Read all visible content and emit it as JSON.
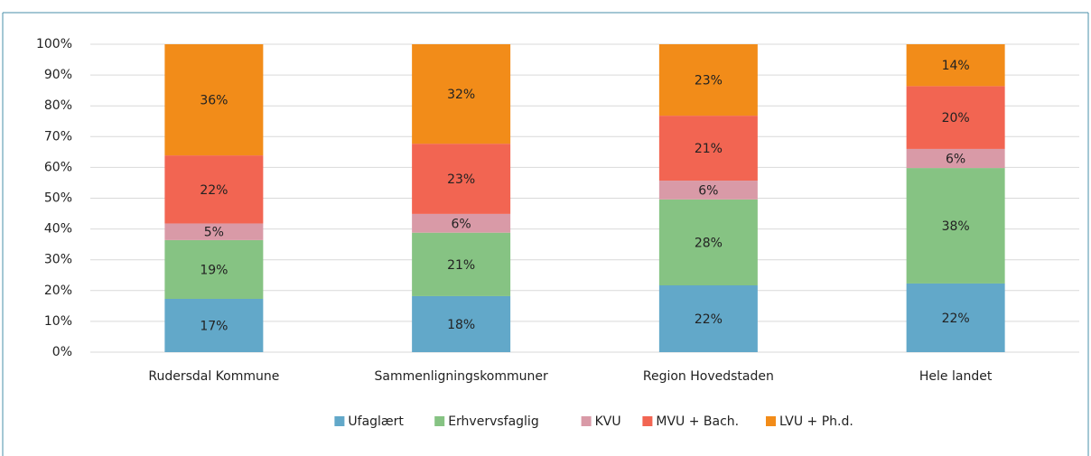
{
  "chart_data": {
    "type": "stacked_bar",
    "categories": [
      "Rudersdal Kommune",
      "Sammenligningskommuner",
      "Region Hovedstaden",
      "Hele landet"
    ],
    "series": [
      {
        "name": "Ufaglært",
        "color": "#62a8c9",
        "values": [
          17.3,
          18.2,
          21.7,
          22.3
        ],
        "value_labels": [
          "17%",
          "18%",
          "22%",
          "22%"
        ]
      },
      {
        "name": "Erhvervsfaglig",
        "color": "#86c383",
        "values": [
          19.1,
          20.6,
          27.9,
          37.5
        ],
        "value_labels": [
          "19%",
          "21%",
          "28%",
          "38%"
        ]
      },
      {
        "name": "KVU",
        "color": "#d99aa7",
        "values": [
          5.4,
          6.1,
          6.1,
          6.2
        ],
        "value_labels": [
          "5%",
          "6%",
          "6%",
          "6%"
        ]
      },
      {
        "name": "MVU + Bach.",
        "color": "#f26552",
        "values": [
          22.1,
          22.8,
          21.1,
          20.4
        ],
        "value_labels": [
          "22%",
          "23%",
          "21%",
          "20%"
        ]
      },
      {
        "name": "LVU + Ph.d.",
        "color": "#f28c19",
        "values": [
          36.1,
          32.3,
          23.2,
          13.6
        ],
        "value_labels": [
          "36%",
          "32%",
          "23%",
          "14%"
        ]
      }
    ],
    "ylim": [
      0,
      100
    ],
    "yticks": [
      {
        "value": 0,
        "label": "0%"
      },
      {
        "value": 10,
        "label": "10%"
      },
      {
        "value": 20,
        "label": "20%"
      },
      {
        "value": 30,
        "label": "30%"
      },
      {
        "value": 40,
        "label": "40%"
      },
      {
        "value": 50,
        "label": "50%"
      },
      {
        "value": 60,
        "label": "60%"
      },
      {
        "value": 70,
        "label": "70%"
      },
      {
        "value": 80,
        "label": "80%"
      },
      {
        "value": 90,
        "label": "90%"
      },
      {
        "value": 100,
        "label": "100%"
      }
    ],
    "grid": true,
    "legend": "bottom"
  }
}
